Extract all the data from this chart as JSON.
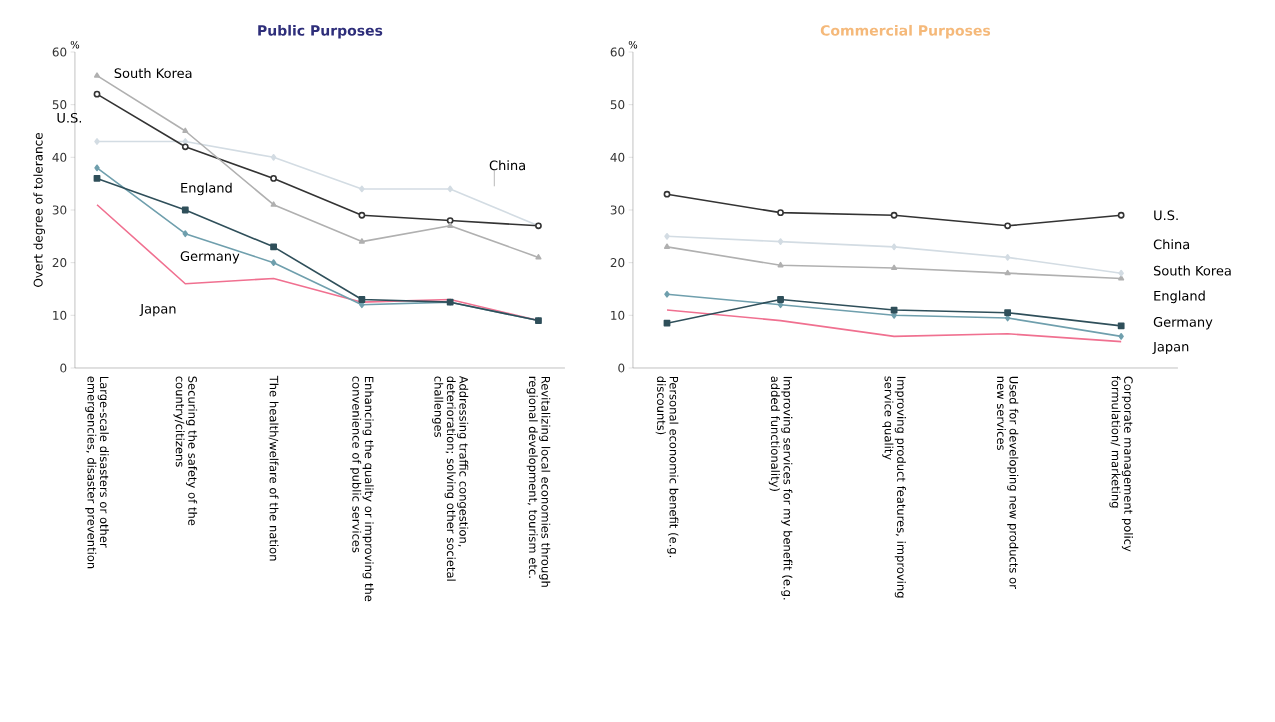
{
  "chart_data": [
    {
      "type": "line",
      "title": "Public Purposes",
      "ylabel": "Overt degree of tolerance",
      "annotations": [
        "%"
      ],
      "categories": [
        "Large-scale disasters or other emergencies, disaster prevention",
        "Securing the safety of the country/citizens",
        "The health/welfare of the nation",
        "Enhancing the quality or improving the convenience of public services",
        "Addressing traffic congestion, deterioration; solving other societal challenges",
        "Revitalizing local economies through regional development, tourism etc."
      ],
      "ylim": [
        0,
        60
      ],
      "yticks": [
        0,
        10,
        20,
        30,
        40,
        50,
        60
      ],
      "grid": false,
      "legend": false,
      "line_style": "solid",
      "series": [
        {
          "name": "South Korea",
          "color": "#b0b0b0",
          "marker": "triangle",
          "values": [
            55.5,
            45,
            31,
            24,
            27,
            21
          ]
        },
        {
          "name": "U.S.",
          "color": "#333333",
          "marker": "circle",
          "values": [
            52,
            42,
            36,
            29,
            28,
            27
          ]
        },
        {
          "name": "China",
          "color": "#d3dce3",
          "marker": "diamond",
          "values": [
            43,
            43,
            40,
            34,
            34,
            27
          ]
        },
        {
          "name": "England",
          "color": "#2f4f5a",
          "marker": "square",
          "values": [
            36,
            30,
            23,
            13,
            12.5,
            9
          ]
        },
        {
          "name": "Germany",
          "color": "#6f9fad",
          "marker": "diamond",
          "values": [
            38,
            25.5,
            20,
            12,
            12.5,
            9
          ]
        },
        {
          "name": "Japan",
          "color": "#f07090",
          "marker": "none",
          "values": [
            31,
            16,
            17,
            12.5,
            13,
            9
          ]
        }
      ]
    },
    {
      "type": "line",
      "title": "Commercial Purposes",
      "annotations": [
        "%"
      ],
      "categories": [
        "Personal economic benefit (e.g. discounts)",
        "Improving services for my benefit (e.g. added functionality)",
        "Improving product features, improving service quality",
        "Used for developing new products or new services",
        "Corporate management policy formulation/ marketing"
      ],
      "ylim": [
        0,
        60
      ],
      "yticks": [
        0,
        10,
        20,
        30,
        40,
        50,
        60
      ],
      "grid": false,
      "legend": false,
      "line_style": "solid",
      "series": [
        {
          "name": "U.S.",
          "color": "#333333",
          "marker": "circle",
          "values": [
            33,
            29.5,
            29,
            27,
            29
          ]
        },
        {
          "name": "China",
          "color": "#d3dce3",
          "marker": "diamond",
          "values": [
            25,
            24,
            23,
            21,
            18
          ]
        },
        {
          "name": "South Korea",
          "color": "#b0b0b0",
          "marker": "triangle",
          "values": [
            23,
            19.5,
            19,
            18,
            17
          ]
        },
        {
          "name": "England",
          "color": "#2f4f5a",
          "marker": "square",
          "values": [
            8.5,
            13,
            11,
            10.5,
            8
          ]
        },
        {
          "name": "Germany",
          "color": "#6f9fad",
          "marker": "diamond",
          "values": [
            14,
            12,
            10,
            9.5,
            6
          ]
        },
        {
          "name": "Japan",
          "color": "#f07090",
          "marker": "none",
          "values": [
            11,
            9,
            6,
            6.5,
            5
          ]
        }
      ]
    }
  ]
}
